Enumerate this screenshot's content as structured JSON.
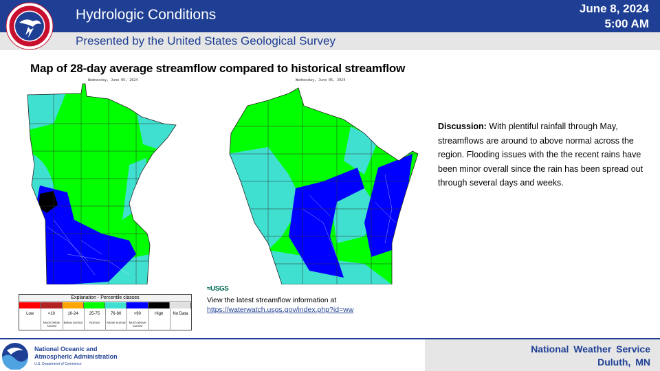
{
  "header": {
    "title": "Hydrologic Conditions",
    "subtitle": "Presented by the United States Geological Survey",
    "date": "June 8, 2024",
    "time": "5:00 AM"
  },
  "map": {
    "heading": "Map of 28-day average streamflow compared to historical streamflow",
    "mn_caption": "Wednesday, June 05, 2024",
    "wi_caption": "Wednesday, June 05, 2024"
  },
  "legend": {
    "title": "Explanation - Percentile classes",
    "classes": [
      {
        "label": "Low",
        "sub": "",
        "color": "#ff0000"
      },
      {
        "label": "<10",
        "sub": "Much below normal",
        "color": "#b22222"
      },
      {
        "label": "10-24",
        "sub": "Below normal",
        "color": "#ffa500"
      },
      {
        "label": "25-75",
        "sub": "Normal",
        "color": "#00ff00"
      },
      {
        "label": "76-90",
        "sub": "Above normal",
        "color": "#40e0d0"
      },
      {
        "label": ">90",
        "sub": "Much above normal",
        "color": "#0000ff"
      },
      {
        "label": "High",
        "sub": "",
        "color": "#000000"
      },
      {
        "label": "No Data",
        "sub": "",
        "color": "#e0e0e0"
      }
    ]
  },
  "usgs": {
    "logo": "≈USGS",
    "text": "View the latest streamflow information at",
    "link": "https://waterwatch.usgs.gov/index.php?id=ww"
  },
  "discussion": {
    "label": "Discussion:",
    "text": "With plentiful rainfall through May, streamflows are around to above normal across the region. Flooding issues with the the recent rains have been minor overall since the rain has been spread out through several days and weeks."
  },
  "footer": {
    "noaa_line1": "National Oceanic and",
    "noaa_line2": "Atmospheric Administration",
    "noaa_line3": "U.S. Department of Commerce",
    "office_name": "National Weather Service",
    "office_city": "Duluth, MN"
  },
  "colors": {
    "brand_blue": "#1f3f94",
    "normal": "#00ff00",
    "above_normal": "#40e0d0",
    "much_above_normal": "#0000ff",
    "high": "#000000"
  }
}
